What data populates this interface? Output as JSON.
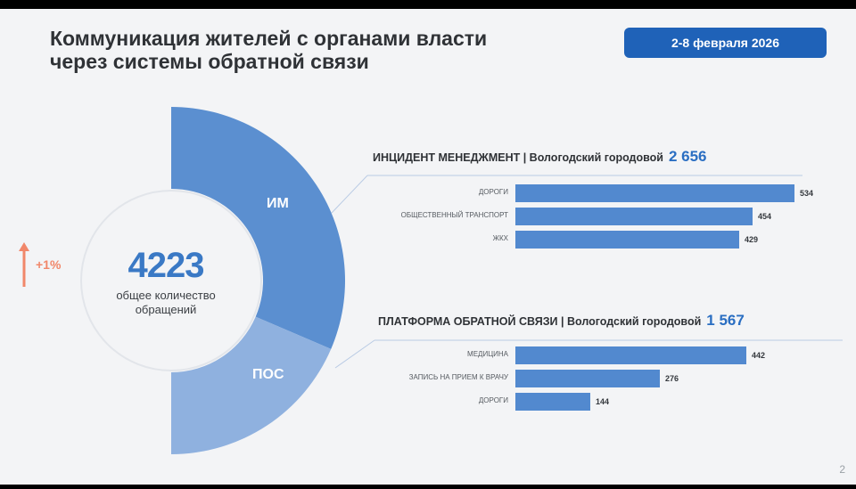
{
  "header": {
    "title_line1": "Коммуникация жителей с органами власти",
    "title_line2": "через системы обратной связи",
    "date_badge": "2-8 февраля 2026"
  },
  "summary": {
    "total": "4223",
    "caption_line1": "общее количество",
    "caption_line2": "обращений",
    "growth": "+1%",
    "segment_im_label": "ИМ",
    "segment_pos_label": "ПОС"
  },
  "page_number": "2",
  "colors": {
    "accent": "#1f62b8",
    "im_segment": "#5b8fd0",
    "pos_segment": "#8fb1df",
    "bar": "#5289cf",
    "growth": "#f1876a"
  },
  "chart_data": [
    {
      "type": "pie",
      "categories": [
        "ИМ",
        "ПОС"
      ],
      "values": [
        2656,
        1567
      ],
      "center_value": 4223
    },
    {
      "type": "bar",
      "orientation": "horizontal",
      "title": "ИНЦИДЕНТ МЕНЕДЖМЕНТ | Вологодский городовой",
      "total": "2 656",
      "categories": [
        "ДОРОГИ",
        "ОБЩЕСТВЕННЫЙ ТРАНСПОРТ",
        "ЖКХ"
      ],
      "values": [
        534,
        454,
        429
      ]
    },
    {
      "type": "bar",
      "orientation": "horizontal",
      "title": "ПЛАТФОРМА ОБРАТНОЙ СВЯЗИ | Вологодский городовой",
      "total": "1 567",
      "categories": [
        "МЕДИЦИНА",
        "ЗАПИСЬ НА ПРИЕМ К ВРАЧУ",
        "ДОРОГИ"
      ],
      "values": [
        442,
        276,
        144
      ]
    }
  ]
}
